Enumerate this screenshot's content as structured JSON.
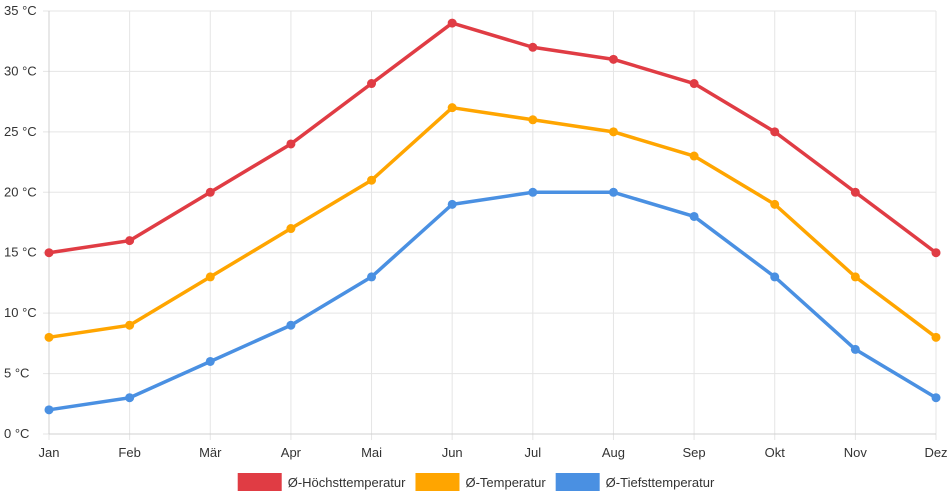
{
  "chart_data": {
    "type": "line",
    "categories": [
      "Jan",
      "Feb",
      "Mär",
      "Apr",
      "Mai",
      "Jun",
      "Jul",
      "Aug",
      "Sep",
      "Okt",
      "Nov",
      "Dez"
    ],
    "ylim": [
      0,
      35
    ],
    "ytick_step": 5,
    "y_unit": " °C",
    "grid": true,
    "legend_position": "bottom-center",
    "series": [
      {
        "name": "Ø-Höchsttemperatur",
        "color": "#e03c44",
        "values": [
          15,
          16,
          20,
          24,
          29,
          34,
          32,
          31,
          29,
          25,
          20,
          15
        ]
      },
      {
        "name": "Ø-Temperatur",
        "color": "#ffa500",
        "values": [
          8,
          9,
          13,
          17,
          21,
          27,
          26,
          25,
          23,
          19,
          13,
          8
        ]
      },
      {
        "name": "Ø-Tiefsttemperatur",
        "color": "#4a90e2",
        "values": [
          2,
          3,
          6,
          9,
          13,
          19,
          20,
          20,
          18,
          13,
          7,
          3
        ]
      }
    ]
  }
}
